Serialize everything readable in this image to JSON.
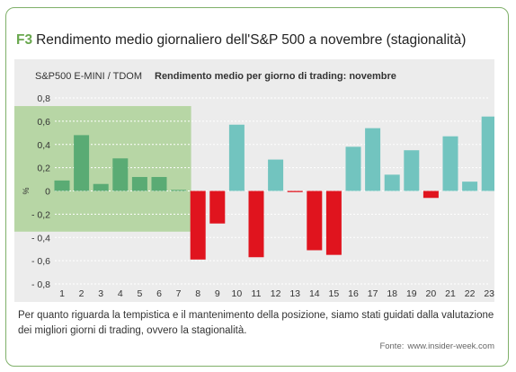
{
  "header": {
    "figure_tag": "F3",
    "title": "Rendimento medio giornaliero dell'S&P 500 a novembre (stagionalità)"
  },
  "caption": "Per quanto riguarda la tempistica e il mantenimento della posizione, siamo stati guidati dalla valutazione dei migliori giorni di trading, ovvero la stagionalità.",
  "source": {
    "label": "Fonte:",
    "value": "www.insider-week.com"
  },
  "colors": {
    "positive_highlight": "#5aab74",
    "positive": "#72c4bf",
    "negative": "#e0141e",
    "highlight_region": "#b7d6a5",
    "panel_bg": "#ececec",
    "frame": "#7fb069",
    "figure_tag": "#6aa84f"
  },
  "chart_data": {
    "type": "bar",
    "subtitle_left": "S&P500 E-MINI / TDOM",
    "title": "Rendimento medio per giorno di trading: novembre",
    "ylabel": "%",
    "xlabel": "",
    "categories": [
      "1",
      "2",
      "3",
      "4",
      "5",
      "6",
      "7",
      "8",
      "9",
      "10",
      "11",
      "12",
      "13",
      "14",
      "15",
      "16",
      "17",
      "18",
      "19",
      "20",
      "21",
      "22",
      "23"
    ],
    "values": [
      0.09,
      0.48,
      0.06,
      0.28,
      0.12,
      0.12,
      0.0,
      -0.59,
      -0.28,
      0.57,
      -0.57,
      0.27,
      -0.01,
      -0.51,
      -0.55,
      0.38,
      0.54,
      0.14,
      0.35,
      -0.06,
      0.47,
      0.08,
      0.64
    ],
    "ylim": [
      -0.8,
      0.8
    ],
    "yticks": [
      0.8,
      0.6,
      0.4,
      0.2,
      0,
      -0.2,
      -0.4,
      -0.6,
      -0.8
    ],
    "ytick_labels": [
      "0,8",
      "0,6",
      "0,4",
      "0,2",
      "0",
      "- 0,2",
      "- 0,4",
      "- 0,6",
      "- 0,8"
    ],
    "highlight_days": [
      "1",
      "2",
      "3",
      "4",
      "5",
      "6",
      "7"
    ],
    "highlight_y_range": [
      -0.35,
      0.73
    ],
    "grid": "horizontal",
    "legend": "none"
  }
}
